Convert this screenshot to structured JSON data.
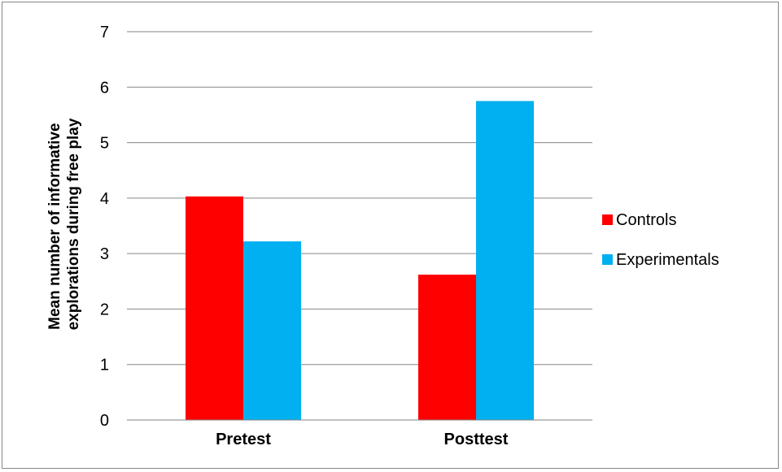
{
  "chart_data": {
    "type": "bar",
    "title": "",
    "xlabel": "",
    "ylabel_lines": [
      "Mean number of informative",
      "explorations during free play"
    ],
    "categories": [
      "Pretest",
      "Posttest"
    ],
    "series": [
      {
        "name": "Controls",
        "color": "#ff0000",
        "values": [
          4.03,
          2.62
        ]
      },
      {
        "name": "Experimentals",
        "color": "#00b0f0",
        "values": [
          3.22,
          5.75
        ]
      }
    ],
    "ylim": [
      0,
      7
    ],
    "yticks": [
      "0",
      "1",
      "2",
      "3",
      "4",
      "5",
      "6",
      "7"
    ],
    "grid": true,
    "legend_position": "right"
  }
}
